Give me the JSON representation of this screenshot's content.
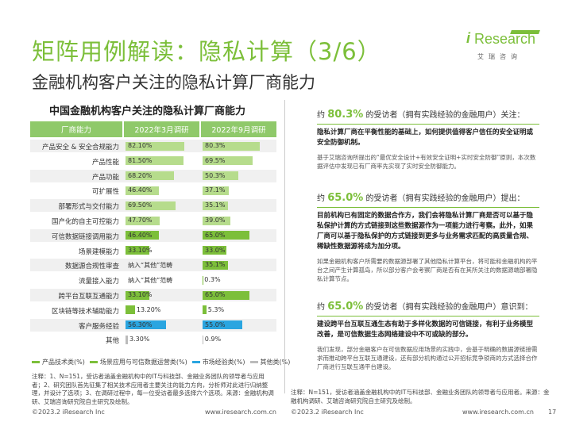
{
  "title": "矩阵用例解读：隐私计算（3/6）",
  "subtitle": "金融机构客户关注的隐私计算厂商能力",
  "logo": {
    "word": "Research",
    "i": "i",
    "cn": "艾瑞咨询"
  },
  "chart_data": {
    "type": "bar",
    "title": "中国金融机构客户关注的隐私计算厂商能力",
    "columns": [
      "厂商能力",
      "2022年3月调研",
      "2022年9月调研"
    ],
    "categories": [
      "产品安全 & 安全合规能力",
      "产品性能",
      "产品功能",
      "可扩展性",
      "部署形式与交付能力",
      "国产化的自主可控能力",
      "可信数据链接调用能力",
      "场景建模能力",
      "数据源合规性审查",
      "流量接入能力",
      "跨平台互联互通能力",
      "区块链等技术辅助能力",
      "客户服务经验",
      "其他"
    ],
    "series": [
      {
        "name": "2022年3月调研",
        "values": [
          82.1,
          81.5,
          68.2,
          46.4,
          69.5,
          47.7,
          46.4,
          33.1,
          null,
          null,
          33.1,
          13.2,
          56.3,
          3.3
        ],
        "labels": [
          "82.10%",
          "81.50%",
          "68.20%",
          "46.40%",
          "69.50%",
          "47.70%",
          "46.40%",
          "33.10%",
          "纳入“其他”范畴",
          "纳入“其他”范畴",
          "33.10%",
          "13.20%",
          "56.30%",
          "3.30%"
        ]
      },
      {
        "name": "2022年9月调研",
        "values": [
          80.3,
          69.5,
          50.3,
          37.1,
          35.1,
          39.0,
          65.0,
          33.0,
          35.1,
          0.3,
          65.0,
          5.3,
          55.0,
          0.9
        ],
        "labels": [
          "80.3%",
          "69.5%",
          "50.3%",
          "37.1%",
          "35.1%",
          "39.0%",
          "65.0%",
          "33.0%",
          "35.1%",
          "0.3%",
          "65.0%",
          "5.3%",
          "55.0%",
          "0.9%"
        ]
      }
    ],
    "category_types": [
      "产品技术类",
      "产品技术类",
      "产品技术类",
      "产品技术类",
      "产品技术类",
      "产品技术类",
      "场景应用与可信数据运营类",
      "场景应用与可信数据运营类",
      "场景应用与可信数据运营类",
      "场景应用与可信数据运营类",
      "场景应用与可信数据运营类",
      "场景应用与可信数据运营类",
      "市场经验类",
      "其他类"
    ],
    "xlim": [
      0,
      100
    ]
  },
  "legend": [
    {
      "label": "产品技术类(%)",
      "color": "#7cbf3a"
    },
    {
      "label": "场景应用与可信数据运营类(%)",
      "color": "#7cbf3a"
    },
    {
      "label": "市场经验类(%)",
      "color": "#2aa5e0"
    },
    {
      "label": "其他类(%)",
      "color": "#bbbbbb"
    }
  ],
  "colors": {
    "green": "#7cbf3a",
    "blue": "#2aa5e0",
    "light_green": "#b6dc8c",
    "grey": "#bbbbbb",
    "header": "#8fc96a"
  },
  "note_left": "注释：1、N=151，受访者涵盖金融机构中的IT与科技部、金融业务团队的领导者与应用者；2、研究团队首先征集了相关技术应用者主要关注的能力方向，分析师对此进行归纳整理，并设计了选项；3、在调研过程中，每一位受访者最多选择六个选项。来源：金融机构调研、艾瑞咨询研究院自主研究及绘制。",
  "callouts": [
    {
      "pre": "约",
      "pct": "80.3%",
      "head": "的受访者（拥有实践经验的金融用户）关注：",
      "bold": "隐私计算厂商在平衡性能的基础上，如何提供值得客户信任的安全证明或安全防御机制。",
      "body": "基于艾瑞咨询所提出的“最优安全设计+有效安全证明+实时安全防御”原则，本次数据评估中发现已有厂商率先实现了实时安全防御能力。"
    },
    {
      "pre": "约",
      "pct": "65.0%",
      "head": "的受访者（拥有实践经验的金融用户）提出：",
      "bold": "目前机构已有固定的数据合作方，我们会将隐私计算厂商是否可以基于隐私保护计算的方式链接到这些数据源作为一项能力进行考察。此外，如果厂商可以基于隐私保护的方式链接到更多与业务需求匹配的高质量合规、稀缺性数据源将成为加分项。",
      "body": "如果金融机构客户所需要的数据源部署了其他隐私计算平台，将可能和金融机构的平台之间产生计算孤岛，所以部分客户会考察厂商是否有在其所关注的数据源端部署隐私计算节点。"
    },
    {
      "pre": "约",
      "pct": "65.0%",
      "head": "的受访者（拥有实践经验的金融用户）意识到：",
      "bold": "建设跨平台互联互通生态有助于多样化数据的可信链接，有利于业务模型改善，是可信数据生态网络建设中不可或缺的部分。",
      "body": "我们发现，部分金融客户在可信数据应用场景的实践中，会基于明确的数据源链接需求而推动跨平台互联互通建设，还有部分机构通过公开招标竞争锁商的方式选择合作厂商进行互联互通平台建设。"
    }
  ],
  "note_right": "注释：N=151，受访者涵盖金融机构中的IT与科技部、金融业务团队的领导者与应用者。来源：金融机构调研、艾瑞咨询研究院自主研究及绘制。",
  "footer": {
    "left_copy": "©2023.2 iResearch Inc",
    "left_url": "www.iresearch.com.cn",
    "right_copy": "©2023.2 iResearch Inc",
    "right_url": "www.iresearch.com.cn",
    "page": "17"
  }
}
